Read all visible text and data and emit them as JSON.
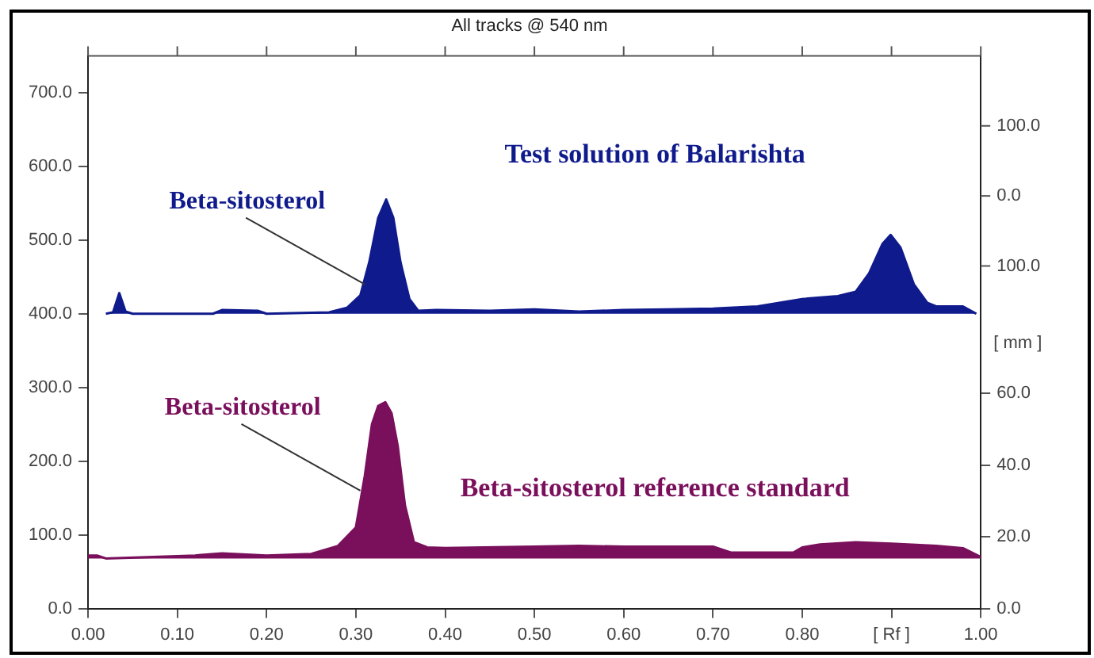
{
  "chart_data": {
    "type": "area",
    "title": "All tracks @ 540 nm",
    "series": [
      {
        "name": "Test solution of Balarishta",
        "color": "#0f1a8c",
        "x": [
          0.02,
          0.028,
          0.035,
          0.042,
          0.05,
          0.14,
          0.15,
          0.19,
          0.2,
          0.27,
          0.29,
          0.305,
          0.315,
          0.325,
          0.334,
          0.342,
          0.35,
          0.36,
          0.37,
          0.39,
          0.45,
          0.5,
          0.55,
          0.6,
          0.65,
          0.7,
          0.75,
          0.8,
          0.84,
          0.86,
          0.875,
          0.89,
          0.899,
          0.91,
          0.925,
          0.94,
          0.95,
          0.98,
          0.995
        ],
        "values": [
          400,
          402,
          428,
          403,
          400,
          400,
          405,
          404,
          400,
          402,
          408,
          425,
          470,
          530,
          555,
          530,
          470,
          420,
          404,
          405,
          404,
          406,
          403,
          405,
          406,
          407,
          410,
          420,
          424,
          430,
          455,
          495,
          507,
          490,
          440,
          415,
          410,
          410,
          400
        ]
      },
      {
        "name": "Beta-sitosterol reference standard",
        "color": "#7a0f5c",
        "x": [
          0.0,
          0.01,
          0.02,
          0.12,
          0.15,
          0.2,
          0.25,
          0.28,
          0.3,
          0.31,
          0.318,
          0.325,
          0.333,
          0.34,
          0.347,
          0.355,
          0.365,
          0.38,
          0.4,
          0.5,
          0.55,
          0.6,
          0.7,
          0.72,
          0.79,
          0.8,
          0.82,
          0.86,
          0.9,
          0.95,
          0.98,
          1.0
        ],
        "values": [
          72,
          72,
          68,
          72,
          75,
          72,
          74,
          85,
          110,
          180,
          250,
          275,
          280,
          265,
          220,
          140,
          90,
          83,
          82,
          84,
          85,
          84,
          84,
          76,
          76,
          83,
          87,
          90,
          88,
          85,
          82,
          70
        ]
      }
    ],
    "annotations": [
      {
        "text": "Beta-sitosterol",
        "x": 0.31,
        "y": 440
      },
      {
        "text": "Beta-sitosterol",
        "x": 0.305,
        "y": 160
      }
    ],
    "y3lim": [
      -589,
      200
    ],
    "y3ticks": [
      {
        "value": -100,
        "label": "100.0"
      },
      {
        "value": 0,
        "label": "0.0"
      },
      {
        "value": 100,
        "label": "100.0"
      }
    ],
    "y2label": "[ mm ]",
    "xlim": [
      0,
      1
    ],
    "xticks": [
      {
        "value": 0,
        "label": "0.00"
      },
      {
        "value": 0.1,
        "label": "0.10"
      },
      {
        "value": 0.2,
        "label": "0.20"
      },
      {
        "value": 0.3,
        "label": "0.30"
      },
      {
        "value": 0.4,
        "label": "0.40"
      },
      {
        "value": 0.5,
        "label": "0.50"
      },
      {
        "value": 0.6,
        "label": "0.60"
      },
      {
        "value": 0.7,
        "label": "0.70"
      },
      {
        "value": 0.8,
        "label": "0.80"
      },
      {
        "value": 0.9,
        "label": "[ Rf ]"
      },
      {
        "value": 1,
        "label": "1.00"
      }
    ],
    "ylim": [
      0,
      750
    ],
    "yticks": [
      {
        "value": 0,
        "label": "0.0"
      },
      {
        "value": 100,
        "label": "100.0"
      },
      {
        "value": 200,
        "label": "200.0"
      },
      {
        "value": 300,
        "label": "300.0"
      },
      {
        "value": 400,
        "label": "400.0"
      },
      {
        "value": 500,
        "label": "500.0"
      },
      {
        "value": 600,
        "label": "600.0"
      },
      {
        "value": 700,
        "label": "700.0"
      }
    ],
    "y2lim": [
      0,
      154
    ],
    "y2ticks": [
      {
        "value": 0,
        "label": "0.0"
      },
      {
        "value": 20,
        "label": "20.0"
      },
      {
        "value": 40,
        "label": "40.0"
      },
      {
        "value": 60,
        "label": "60.0"
      }
    ],
    "grid": false,
    "legend": false,
    "marker": "none",
    "line_style": "solid"
  }
}
